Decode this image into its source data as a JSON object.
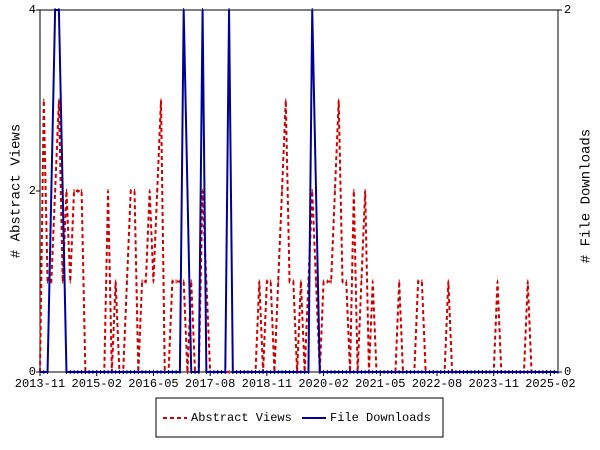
{
  "chart_data": {
    "type": "line",
    "categories": [
      "2013-11",
      "2013-12",
      "2014-01",
      "2014-02",
      "2014-03",
      "2014-04",
      "2014-05",
      "2014-06",
      "2014-07",
      "2014-08",
      "2014-09",
      "2014-10",
      "2014-11",
      "2014-12",
      "2015-01",
      "2015-02",
      "2015-03",
      "2015-04",
      "2015-05",
      "2015-06",
      "2015-07",
      "2015-08",
      "2015-09",
      "2015-10",
      "2015-11",
      "2015-12",
      "2016-01",
      "2016-02",
      "2016-03",
      "2016-04",
      "2016-05",
      "2016-06",
      "2016-07",
      "2016-08",
      "2016-09",
      "2016-10",
      "2016-11",
      "2016-12",
      "2017-01",
      "2017-02",
      "2017-03",
      "2017-04",
      "2017-05",
      "2017-06",
      "2017-07",
      "2017-08",
      "2017-09",
      "2017-10",
      "2017-11",
      "2017-12",
      "2018-01",
      "2018-02",
      "2018-03",
      "2018-04",
      "2018-05",
      "2018-06",
      "2018-07",
      "2018-08",
      "2018-09",
      "2018-10",
      "2018-11",
      "2018-12",
      "2019-01",
      "2019-02",
      "2019-03",
      "2019-04",
      "2019-05",
      "2019-06",
      "2019-07",
      "2019-08",
      "2019-09",
      "2019-10",
      "2019-11",
      "2019-12",
      "2020-01",
      "2020-02",
      "2020-03",
      "2020-04",
      "2020-05",
      "2020-06",
      "2020-07",
      "2020-08",
      "2020-09",
      "2020-10",
      "2020-11",
      "2020-12",
      "2021-01",
      "2021-02",
      "2021-03",
      "2021-04",
      "2021-05",
      "2021-06",
      "2021-07",
      "2021-08",
      "2021-09",
      "2021-10",
      "2021-11",
      "2021-12",
      "2022-01",
      "2022-02",
      "2022-03",
      "2022-04",
      "2022-05",
      "2022-06",
      "2022-07",
      "2022-08",
      "2022-09",
      "2022-10",
      "2022-11",
      "2022-12",
      "2023-01",
      "2023-02",
      "2023-03",
      "2023-04",
      "2023-05",
      "2023-06",
      "2023-07",
      "2023-08",
      "2023-09",
      "2023-10",
      "2023-11",
      "2023-12",
      "2024-01",
      "2024-02",
      "2024-03",
      "2024-04",
      "2024-05",
      "2024-06",
      "2024-07",
      "2024-08",
      "2024-09",
      "2024-10",
      "2024-11",
      "2024-12",
      "2025-01",
      "2025-02",
      "2025-03",
      "2025-04"
    ],
    "xticks": [
      "2013-11",
      "2015-02",
      "2016-05",
      "2017-08",
      "2018-11",
      "2020-02",
      "2021-05",
      "2022-08",
      "2023-11",
      "2025-02"
    ],
    "ylabel": "# Abstract Views",
    "y2label": "# File Downloads",
    "ylim": [
      0,
      4
    ],
    "yticks": [
      0,
      2,
      4
    ],
    "y2lim": [
      0,
      2
    ],
    "y2ticks": [
      0,
      2
    ],
    "series": [
      {
        "name": "Abstract Views",
        "color": "#cc0000",
        "dash": true,
        "axis": "y",
        "values": [
          0,
          3,
          1,
          1,
          2,
          3,
          1,
          2,
          1,
          2,
          2,
          2,
          0,
          0,
          0,
          0,
          0,
          0,
          2,
          0,
          1,
          0,
          0,
          1,
          2,
          2,
          0,
          1,
          1,
          2,
          1,
          2,
          3,
          0,
          0,
          1,
          1,
          1,
          1,
          0,
          1,
          0,
          0,
          2,
          1,
          0,
          0,
          0,
          0,
          0,
          0,
          0,
          0,
          0,
          0,
          0,
          0,
          0,
          1,
          0,
          1,
          1,
          0,
          1,
          2,
          3,
          1,
          1,
          0,
          1,
          0,
          1,
          2,
          1,
          0,
          1,
          1,
          1,
          2,
          3,
          1,
          1,
          0,
          2,
          0,
          1,
          2,
          0,
          1,
          0,
          0,
          0,
          0,
          0,
          0,
          1,
          0,
          0,
          0,
          0,
          1,
          1,
          0,
          0,
          0,
          0,
          0,
          0,
          1,
          0,
          0,
          0,
          0,
          0,
          0,
          0,
          0,
          0,
          0,
          0,
          0,
          1,
          0,
          0,
          0,
          0,
          0,
          0,
          0,
          1,
          0,
          0,
          0,
          0,
          0,
          0,
          0,
          0
        ]
      },
      {
        "name": "File Downloads",
        "color": "#000099",
        "dash": false,
        "axis": "y2",
        "values": [
          0,
          0,
          0,
          1,
          2,
          2,
          1,
          0,
          0,
          0,
          0,
          0,
          0,
          0,
          0,
          0,
          0,
          0,
          0,
          0,
          0,
          0,
          0,
          0,
          0,
          0,
          0,
          0,
          0,
          0,
          0,
          0,
          0,
          0,
          0,
          0,
          0,
          0,
          2,
          1,
          0,
          0,
          0,
          2,
          0,
          0,
          0,
          0,
          0,
          0,
          2,
          0,
          0,
          0,
          0,
          0,
          0,
          0,
          0,
          0,
          0,
          0,
          0,
          0,
          0,
          0,
          0,
          0,
          0,
          0,
          0,
          0,
          2,
          1,
          0,
          0,
          0,
          0,
          0,
          0,
          0,
          0,
          0,
          0,
          0,
          0,
          0,
          0,
          0,
          0,
          0,
          0,
          0,
          0,
          0,
          0,
          0,
          0,
          0,
          0,
          0,
          0,
          0,
          0,
          0,
          0,
          0,
          0,
          0,
          0,
          0,
          0,
          0,
          0,
          0,
          0,
          0,
          0,
          0,
          0,
          0,
          0,
          0,
          0,
          0,
          0,
          0,
          0,
          0,
          0,
          0,
          0,
          0,
          0,
          0,
          0,
          0,
          0
        ]
      }
    ]
  }
}
